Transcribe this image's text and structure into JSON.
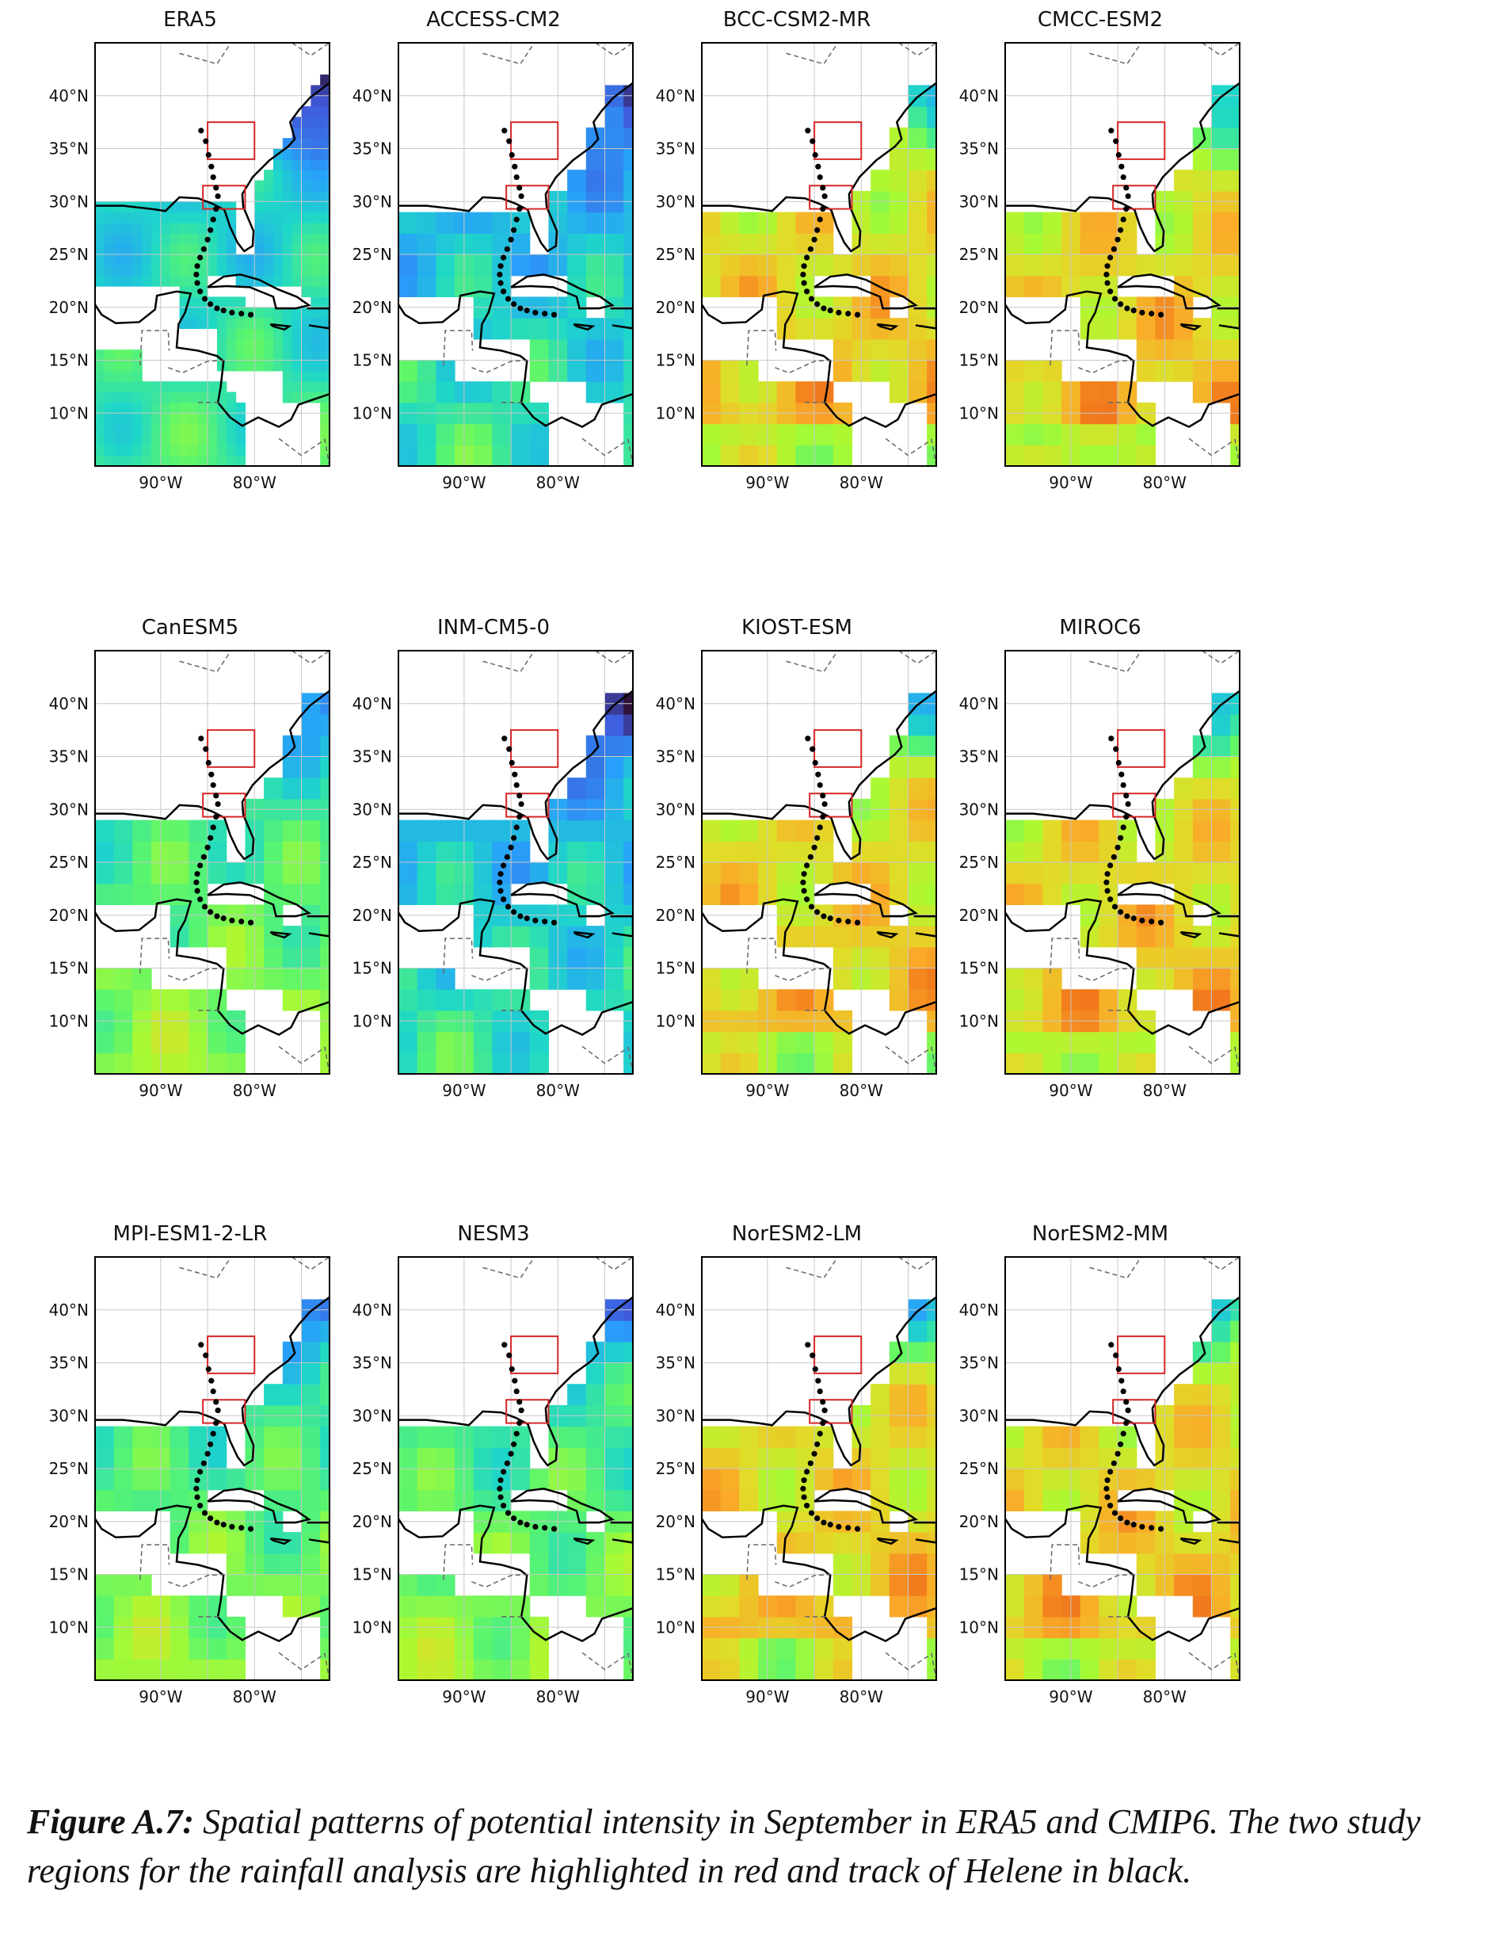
{
  "figure": {
    "panels": [
      {
        "title": "ERA5",
        "style": "era5"
      },
      {
        "title": "ACCESS-CM2",
        "style": "cool"
      },
      {
        "title": "BCC-CSM2-MR",
        "style": "warm"
      },
      {
        "title": "CMCC-ESM2",
        "style": "warm"
      },
      {
        "title": "CanESM5",
        "style": "mid"
      },
      {
        "title": "INM-CM5-0",
        "style": "cool"
      },
      {
        "title": "KIOST-ESM",
        "style": "warm"
      },
      {
        "title": "MIROC6",
        "style": "warm"
      },
      {
        "title": "MPI-ESM1-2-LR",
        "style": "mid"
      },
      {
        "title": "NESM3",
        "style": "mid"
      },
      {
        "title": "NorESM2-LM",
        "style": "warm"
      },
      {
        "title": "NorESM2-MM",
        "style": "warm"
      }
    ],
    "lat_ticks": [
      "10°N",
      "15°N",
      "20°N",
      "25°N",
      "30°N",
      "35°N",
      "40°N"
    ],
    "lon_ticks": [
      "90°W",
      "80°W"
    ],
    "region_color": "#d62728",
    "track_color": "#000000"
  },
  "caption": {
    "label": "Figure A.7:",
    "text": " Spatial patterns of potential intensity in September in ERA5 and CMIP6. The two study regions for the rainfall analysis are highlighted in red and track of Helene in black."
  }
}
